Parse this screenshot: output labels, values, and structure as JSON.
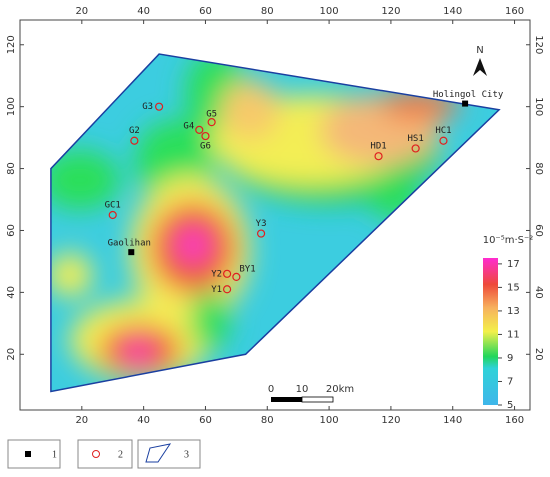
{
  "map": {
    "xlim": [
      0,
      165
    ],
    "ylim": [
      2,
      128
    ],
    "xticks": [
      20,
      40,
      60,
      80,
      100,
      120,
      140,
      160
    ],
    "yticks": [
      20,
      40,
      60,
      80,
      100,
      120
    ],
    "boundary": {
      "x": [
        10,
        10,
        45,
        155,
        73
      ],
      "y": [
        8,
        80,
        117,
        99,
        20
      ]
    },
    "stations": [
      {
        "label": "G3",
        "x": 45,
        "y": 100
      },
      {
        "label": "G5",
        "x": 62,
        "y": 95
      },
      {
        "label": "G4",
        "x": 58,
        "y": 92.5
      },
      {
        "label": "G6",
        "x": 60,
        "y": 90.5
      },
      {
        "label": "G2",
        "x": 37,
        "y": 89
      },
      {
        "label": "GC1",
        "x": 30,
        "y": 65
      },
      {
        "label": "Y3",
        "x": 78,
        "y": 59
      },
      {
        "label": "Y2",
        "x": 67,
        "y": 46
      },
      {
        "label": "BY1",
        "x": 70,
        "y": 45
      },
      {
        "label": "Y1",
        "x": 67,
        "y": 41
      },
      {
        "label": "HD1",
        "x": 116,
        "y": 84
      },
      {
        "label": "HS1",
        "x": 128,
        "y": 86.5
      },
      {
        "label": "HC1",
        "x": 137,
        "y": 89
      }
    ],
    "towns": [
      {
        "label": "Holingol City",
        "x": 144,
        "y": 101
      },
      {
        "label": "Gaolihan",
        "x": 36,
        "y": 53
      }
    ],
    "north": "N",
    "colorbar": {
      "unit": "10⁻⁵m·S⁻²",
      "lim": [
        5,
        17.5
      ],
      "ticks": [
        5,
        7,
        9,
        11,
        13,
        15,
        17
      ]
    },
    "scalebar": [
      "0",
      "10",
      "20km"
    ],
    "legend": [
      "1",
      "2",
      "3"
    ]
  }
}
